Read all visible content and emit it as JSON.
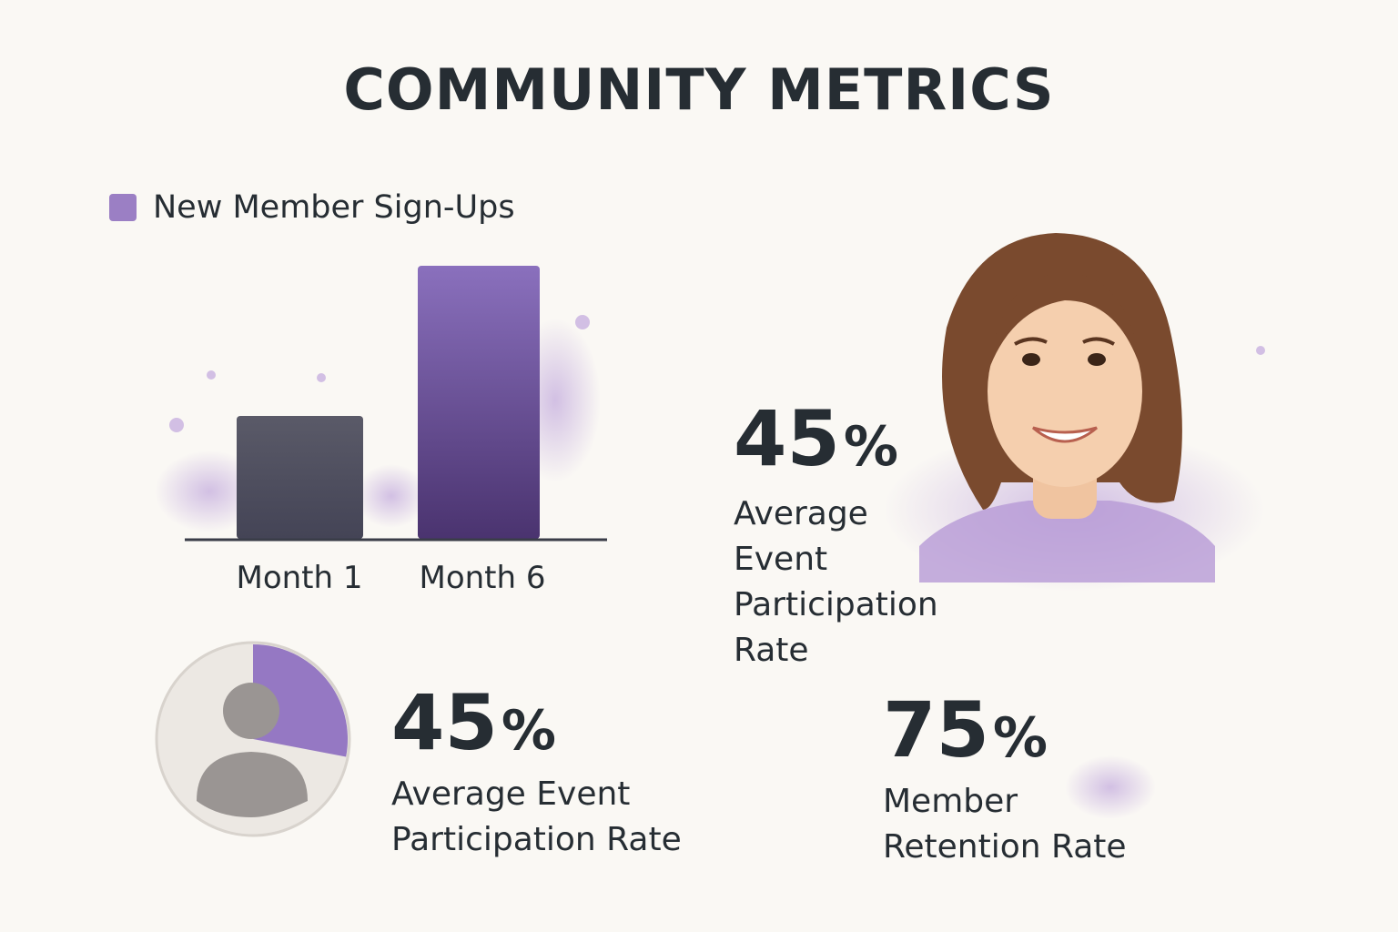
{
  "title": "COMMUNITY METRICS",
  "chart_data": {
    "type": "bar",
    "categories": [
      "Month 1",
      "Month 6"
    ],
    "series": [
      {
        "name": "New Member Sign-Ups",
        "values": [
          45,
          100
        ]
      }
    ],
    "legend": "top-left",
    "grid": false,
    "colors": [
      "#55566a",
      "#6a4f9a"
    ]
  },
  "pie": {
    "fill_fraction": 0.28,
    "accent": "#8c6cbf",
    "icon": "person-icon"
  },
  "stats": [
    {
      "value": "45",
      "unit": "%",
      "label_lines": [
        "Average Event",
        "Participation Rate"
      ]
    },
    {
      "value": "45",
      "unit": "%",
      "label_lines": [
        "Average",
        "Event",
        "Participation",
        "Rate"
      ]
    },
    {
      "value": "75",
      "unit": "%",
      "label_lines": [
        "Member",
        "Retention Rate"
      ]
    }
  ],
  "accent_color": "#9b7fc4",
  "portrait": "smiling-woman-illustration"
}
